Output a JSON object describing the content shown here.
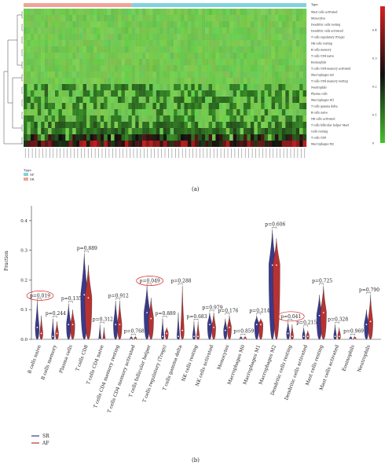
{
  "panel_a": {
    "label": "(a)",
    "legend_title": "Type",
    "legend_items": [
      {
        "name": "AF",
        "color": "#7fd3dd"
      },
      {
        "name": "SR",
        "color": "#f2a398"
      }
    ],
    "colorbar_ticks": [
      "0.4",
      "0.3",
      "0.2",
      "0.1",
      "0"
    ],
    "type_row_label": "Type",
    "row_labels": [
      "Mast cells activated",
      "Monocytes",
      "Dendritic cells resting",
      "Dendritic cells activated",
      "T cells regulatory (Tregs)",
      "NK cells resting",
      "B cells memory",
      "T cells CD4 naive",
      "Eosinophils",
      "T cells CD4 memory activated",
      "Macrophages m0",
      "T cells CD4 memory resting",
      "Neutrophils",
      "Plasma cells",
      "Macrophages M1",
      "T cells gamma delta",
      "B cells naive",
      "NK cells activated",
      "T cells follicular helper Mast",
      "Cells resting",
      "T cells CD8",
      "Macrophages M2"
    ]
  },
  "panel_b": {
    "label": "(b)",
    "ylabel": "Fraction",
    "legend_items": [
      {
        "name": "SR",
        "color": "#3a3a8c"
      },
      {
        "name": "AF",
        "color": "#b83232"
      }
    ]
  },
  "chart_data": [
    {
      "type": "heatmap",
      "title": "",
      "rows": [
        "Mast cells activated",
        "Monocytes",
        "Dendritic cells resting",
        "Dendritic cells activated",
        "T cells regulatory (Tregs)",
        "NK cells resting",
        "B cells memory",
        "T cells CD4 naive",
        "Eosinophils",
        "T cells CD4 memory activated",
        "Macrophages m0",
        "T cells CD4 memory resting",
        "Neutrophils",
        "Plasma cells",
        "Macrophages M1",
        "T cells gamma delta",
        "B cells naive",
        "NK cells activated",
        "T cells follicular helper Mast",
        "Cells resting",
        "T cells CD8",
        "Macrophages M2"
      ],
      "row_mean_fraction": [
        0.01,
        0.01,
        0.01,
        0.01,
        0.01,
        0.01,
        0.01,
        0.01,
        0.01,
        0.01,
        0.01,
        0.01,
        0.06,
        0.06,
        0.06,
        0.06,
        0.05,
        0.05,
        0.08,
        0.09,
        0.16,
        0.27
      ],
      "color_scale": {
        "min": 0,
        "max": 0.4,
        "colors": [
          "#48c030",
          "#101010",
          "#d62020"
        ]
      },
      "column_groups": [
        {
          "name": "SR",
          "count": 31
        },
        {
          "name": "AF",
          "count": 50
        }
      ]
    },
    {
      "type": "violin",
      "ylabel": "Fraction",
      "ylim": [
        0,
        0.45
      ],
      "yticks": [
        0.0,
        0.1,
        0.2,
        0.3,
        0.4
      ],
      "categories": [
        "B cells naive",
        "B cells memory",
        "Plasma cells",
        "T cells CD8",
        "T cells CD4 naive",
        "T cells CD4 memory resting",
        "T cells CD4 memory activated",
        "T cells follicular helper",
        "T cells regulatory (Tregs)",
        "T cells gamma delta",
        "NK cells resting",
        "NK cells activated",
        "Monocytes",
        "Macrophages M0",
        "Macrophages M1",
        "Macrophages M2",
        "Dendritic cells resting",
        "Dendritic cells activated",
        "Mast cells resting",
        "Mast cells activated",
        "Eosinophils",
        "Neutrophils"
      ],
      "p_values": [
        "p=0.019",
        "p=0.244",
        "p=0.135",
        "p=0.889",
        "p=0.312",
        "p=0.912",
        "p=0.768",
        "p=0.049",
        "p=0.889",
        "p=0.288",
        "p=0.683",
        "p=0.979",
        "p=0.176",
        "p=0.859",
        "p=0.214",
        "p=0.606",
        "p=0.041",
        "p=0.215",
        "p=0.725",
        "p=0.328",
        "p=0.969",
        "p=0.790"
      ],
      "highlighted": [
        "p=0.019",
        "p=0.049",
        "p=0.041"
      ],
      "series": [
        {
          "name": "SR",
          "median": [
            0.04,
            0.01,
            0.05,
            0.15,
            0.0,
            0.05,
            0.0,
            0.09,
            0.01,
            0.01,
            0.01,
            0.05,
            0.03,
            0.0,
            0.05,
            0.25,
            0.02,
            0.01,
            0.08,
            0.01,
            0.0,
            0.05
          ],
          "max": [
            0.13,
            0.07,
            0.12,
            0.29,
            0.05,
            0.13,
            0.01,
            0.18,
            0.07,
            0.09,
            0.06,
            0.09,
            0.07,
            0.01,
            0.08,
            0.37,
            0.06,
            0.04,
            0.15,
            0.05,
            0.01,
            0.1
          ]
        },
        {
          "name": "AF",
          "median": [
            0.02,
            0.02,
            0.05,
            0.14,
            0.0,
            0.05,
            0.0,
            0.07,
            0.02,
            0.03,
            0.01,
            0.04,
            0.04,
            0.0,
            0.05,
            0.25,
            0.01,
            0.01,
            0.09,
            0.01,
            0.0,
            0.06
          ],
          "max": [
            0.08,
            0.06,
            0.1,
            0.25,
            0.04,
            0.13,
            0.01,
            0.14,
            0.04,
            0.18,
            0.06,
            0.09,
            0.08,
            0.01,
            0.07,
            0.34,
            0.05,
            0.03,
            0.18,
            0.04,
            0.01,
            0.15
          ]
        }
      ]
    }
  ]
}
